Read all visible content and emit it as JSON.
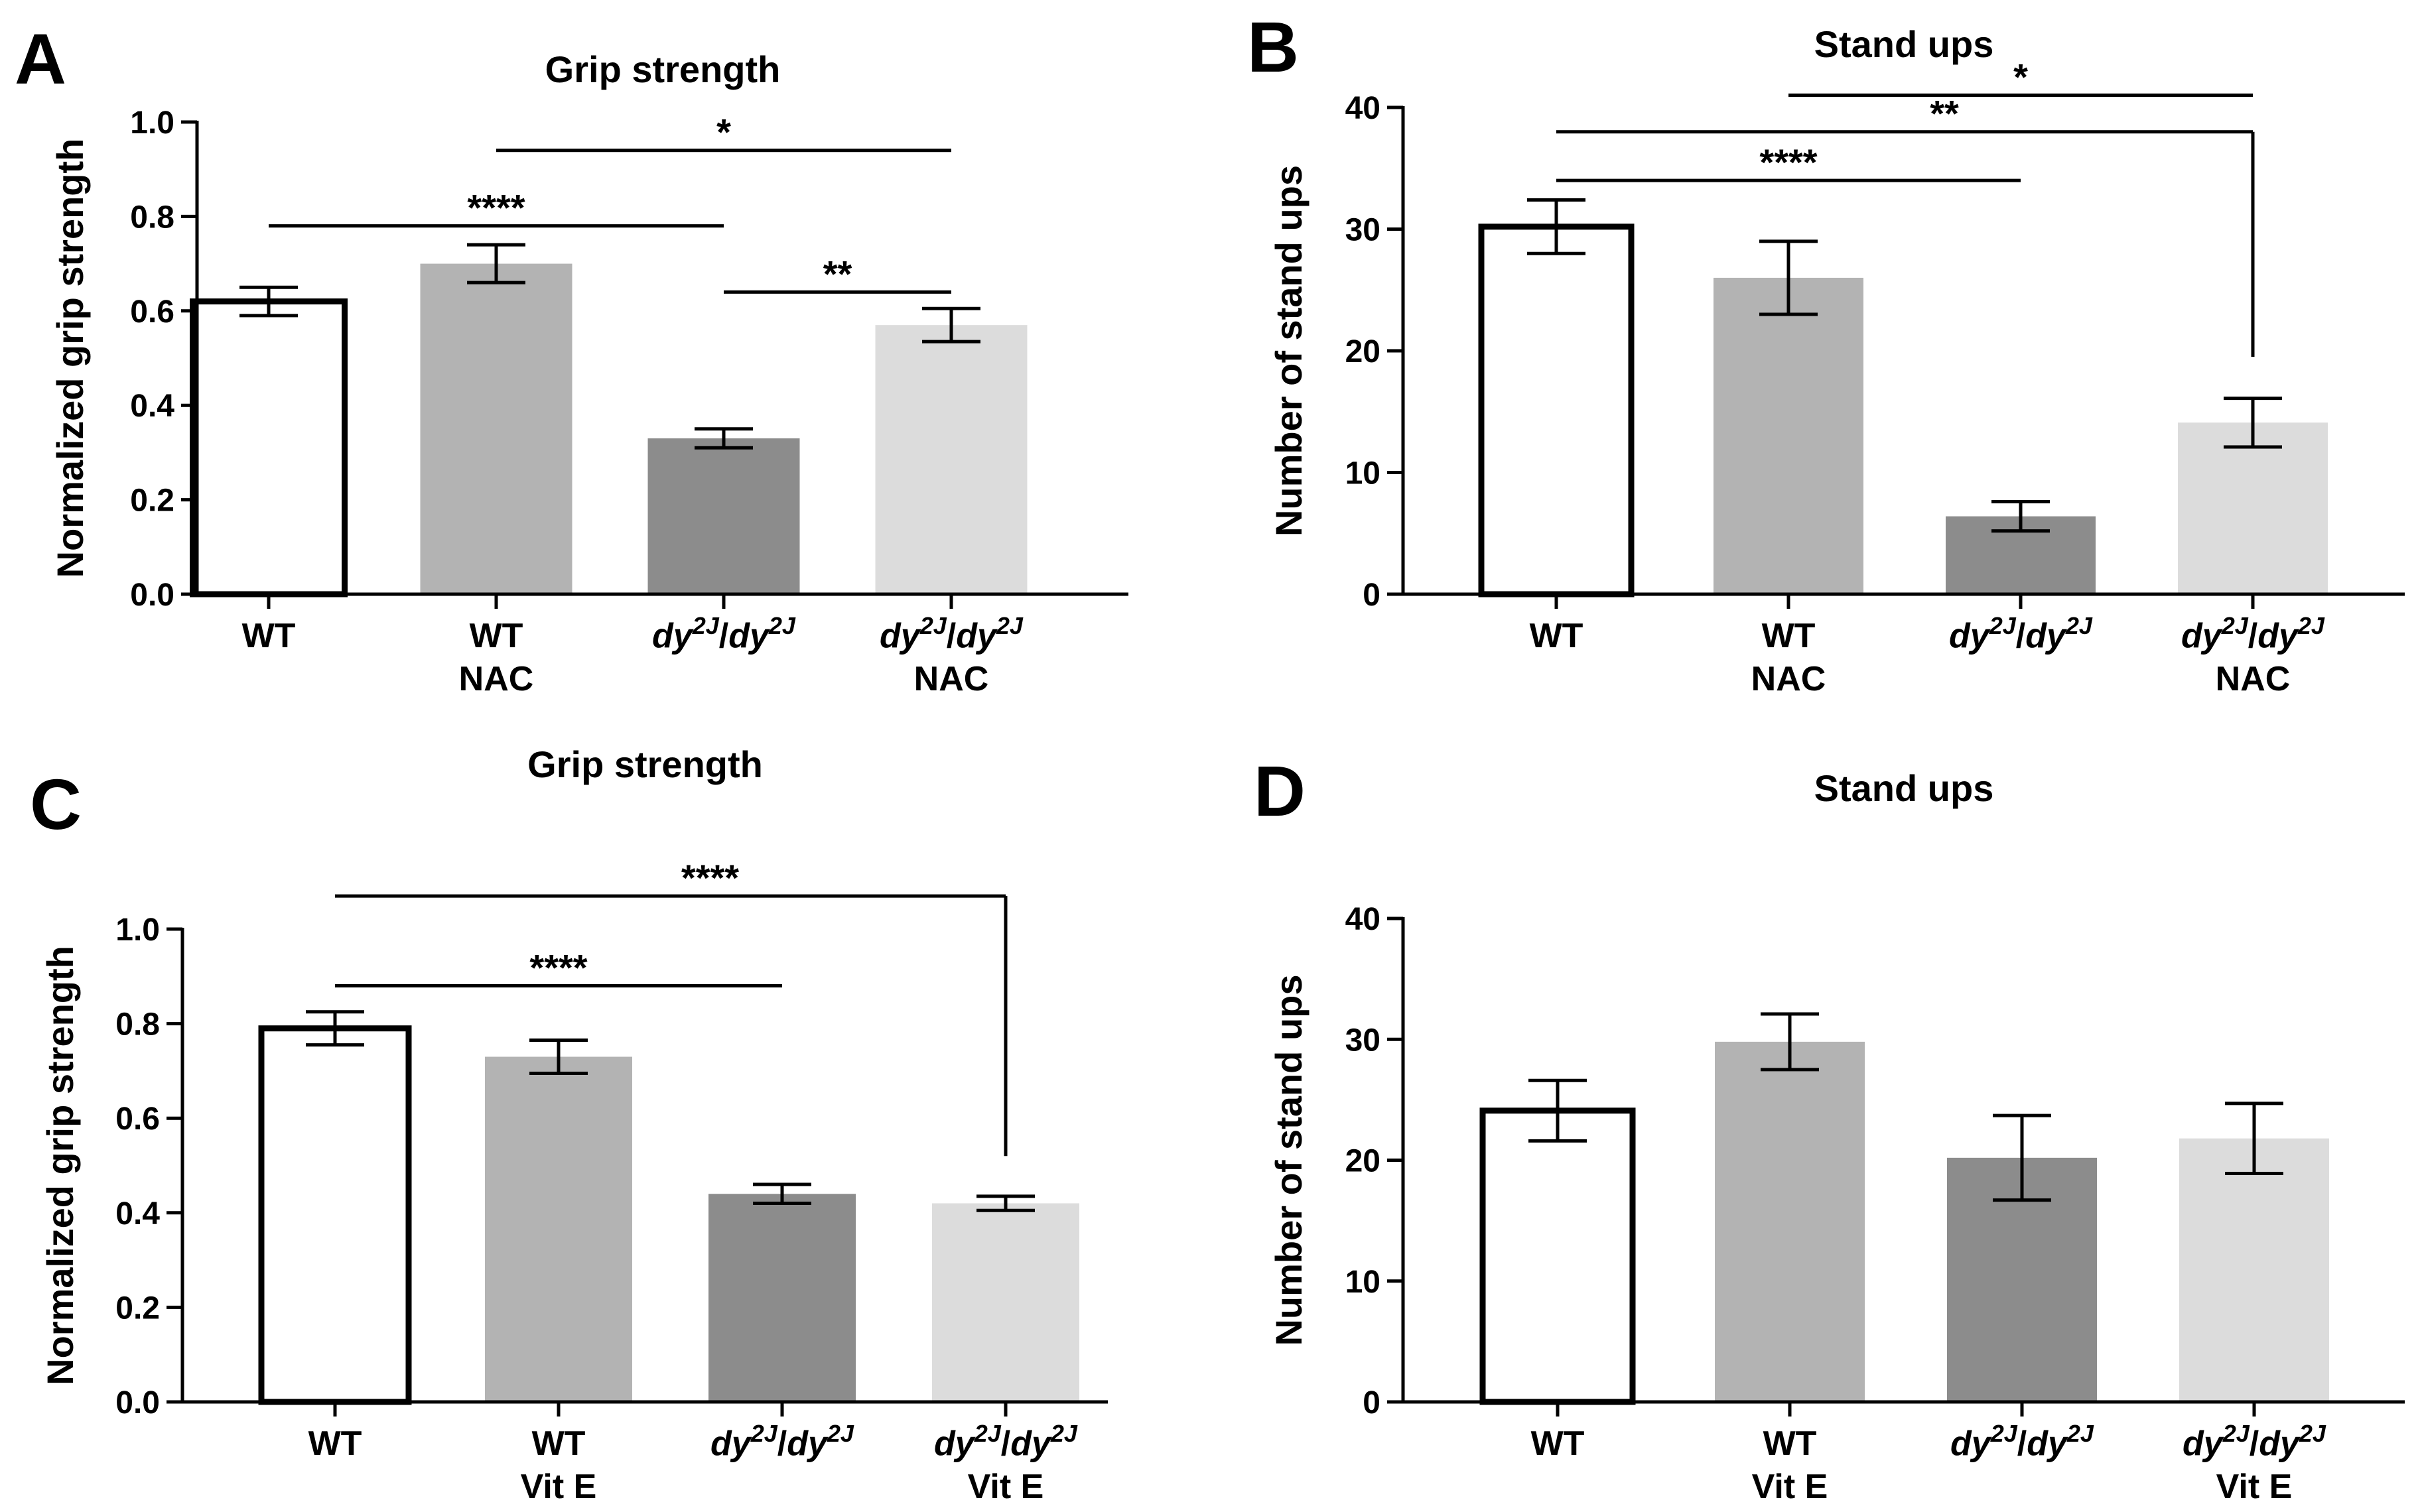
{
  "panel_letters": [
    "A",
    "B",
    "C",
    "D"
  ],
  "chart_data": [
    {
      "panel": "A",
      "type": "bar",
      "title": "Grip strength",
      "ylabel": "Normalized grip strength",
      "ylim": [
        0,
        1.0
      ],
      "yticks": [
        "0.0",
        "0.2",
        "0.4",
        "0.6",
        "0.8",
        "1.0"
      ],
      "categories": [
        {
          "line1": "WT",
          "line2": ""
        },
        {
          "line1": "WT",
          "line2": "NAC"
        },
        {
          "base": "dy",
          "sup": "2J",
          "sep": "/",
          "base2": "dy",
          "sup2": "2J",
          "line2": ""
        },
        {
          "base": "dy",
          "sup": "2J",
          "sep": "/",
          "base2": "dy",
          "sup2": "2J",
          "line2": "NAC"
        }
      ],
      "values": [
        0.62,
        0.7,
        0.33,
        0.57
      ],
      "errors": [
        0.03,
        0.04,
        0.02,
        0.035
      ],
      "colors": [
        "#ffffff",
        "#b3b3b3",
        "#8c8c8c",
        "#dcdcdc"
      ],
      "significance": [
        {
          "from": 0,
          "to": 2,
          "label": "****",
          "y": 0.78,
          "drop": null
        },
        {
          "from": 1,
          "to": 3,
          "label": "*",
          "y": 0.94,
          "drop": null
        },
        {
          "from": 2,
          "to": 3,
          "label": "**",
          "y": 0.64,
          "drop": null
        }
      ]
    },
    {
      "panel": "B",
      "type": "bar",
      "title": "Stand ups",
      "ylabel": "Number of stand ups",
      "ylim": [
        0,
        40
      ],
      "yticks": [
        "0",
        "10",
        "20",
        "30",
        "40"
      ],
      "categories": [
        {
          "line1": "WT",
          "line2": ""
        },
        {
          "line1": "WT",
          "line2": "NAC"
        },
        {
          "base": "dy",
          "sup": "2J",
          "sep": "/",
          "base2": "dy",
          "sup2": "2J",
          "line2": ""
        },
        {
          "base": "dy",
          "sup": "2J",
          "sep": "/",
          "base2": "dy",
          "sup2": "2J",
          "line2": "NAC"
        }
      ],
      "values": [
        30.2,
        26.0,
        6.4,
        14.1
      ],
      "errors": [
        2.2,
        3.0,
        1.2,
        2.0
      ],
      "colors": [
        "#ffffff",
        "#b3b3b3",
        "#8c8c8c",
        "#dcdcdc"
      ],
      "significance": [
        {
          "from": 0,
          "to": 2,
          "label": "****",
          "y": 34.0,
          "drop": null
        },
        {
          "from": 0,
          "to": 3,
          "label": "**",
          "y": 38.0,
          "drop": 19.5
        },
        {
          "from": 1,
          "to": 3,
          "label": "*",
          "y": 41.0,
          "drop": null
        }
      ]
    },
    {
      "panel": "C",
      "type": "bar",
      "title": "Grip strength",
      "ylabel": "Normalized grip strength",
      "ylim": [
        0,
        1.0
      ],
      "yticks": [
        "0.0",
        "0.2",
        "0.4",
        "0.6",
        "0.8",
        "1.0"
      ],
      "categories": [
        {
          "line1": "WT",
          "line2": ""
        },
        {
          "line1": "WT",
          "line2": "Vit E"
        },
        {
          "base": "dy",
          "sup": "2J",
          "sep": "/",
          "base2": "dy",
          "sup2": "2J",
          "line2": ""
        },
        {
          "base": "dy",
          "sup": "2J",
          "sep": "/",
          "base2": "dy",
          "sup2": "2J",
          "line2": "Vit E"
        }
      ],
      "values": [
        0.79,
        0.73,
        0.44,
        0.42
      ],
      "errors": [
        0.035,
        0.035,
        0.02,
        0.015
      ],
      "colors": [
        "#ffffff",
        "#b3b3b3",
        "#8c8c8c",
        "#dcdcdc"
      ],
      "significance": [
        {
          "from": 0,
          "to": 2,
          "label": "****",
          "y": 0.88,
          "drop": null
        },
        {
          "from": 0,
          "to": 3,
          "label": "****",
          "y": 1.07,
          "drop": 0.52
        }
      ]
    },
    {
      "panel": "D",
      "type": "bar",
      "title": "Stand ups",
      "ylabel": "Number of stand ups",
      "ylim": [
        0,
        40
      ],
      "yticks": [
        "0",
        "10",
        "20",
        "30",
        "40"
      ],
      "categories": [
        {
          "line1": "WT",
          "line2": ""
        },
        {
          "line1": "WT",
          "line2": "Vit E"
        },
        {
          "base": "dy",
          "sup": "2J",
          "sep": "/",
          "base2": "dy",
          "sup2": "2J",
          "line2": ""
        },
        {
          "base": "dy",
          "sup": "2J",
          "sep": "/",
          "base2": "dy",
          "sup2": "2J",
          "line2": "Vit E"
        }
      ],
      "values": [
        24.1,
        29.8,
        20.2,
        21.8
      ],
      "errors": [
        2.5,
        2.3,
        3.5,
        2.9
      ],
      "colors": [
        "#ffffff",
        "#b3b3b3",
        "#8c8c8c",
        "#dcdcdc"
      ],
      "significance": []
    }
  ]
}
